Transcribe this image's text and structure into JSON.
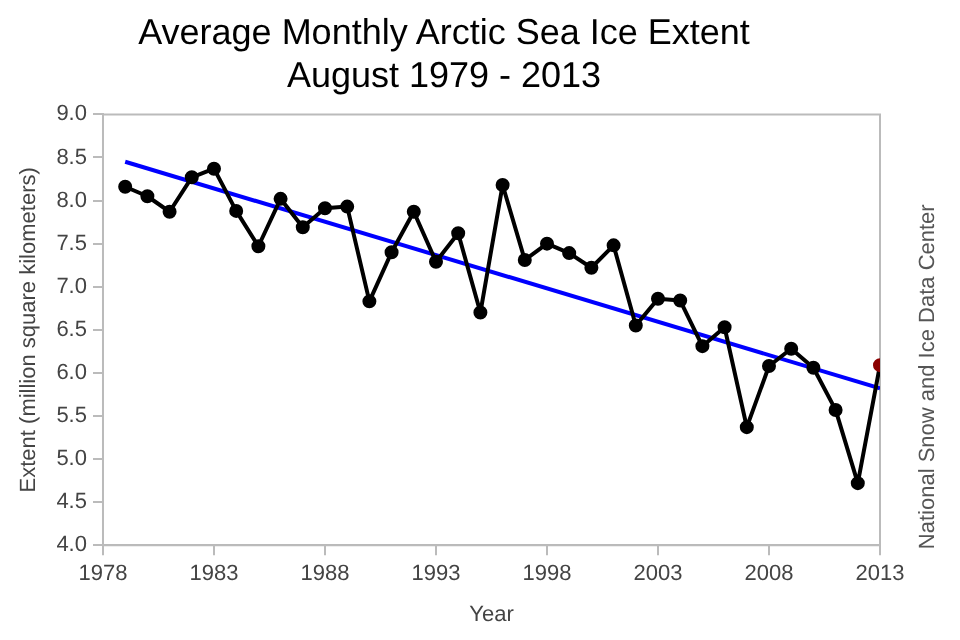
{
  "chart_data": {
    "type": "line",
    "title": "Average Monthly Arctic Sea Ice Extent\nAugust 1979 - 2013",
    "xlabel": "Year",
    "ylabel": "Extent (million square kilometers)",
    "annotations": [
      "National Snow and Ice Data Center"
    ],
    "x": [
      1979,
      1980,
      1981,
      1982,
      1983,
      1984,
      1985,
      1986,
      1987,
      1988,
      1989,
      1990,
      1991,
      1992,
      1993,
      1994,
      1995,
      1996,
      1997,
      1998,
      1999,
      2000,
      2001,
      2002,
      2003,
      2004,
      2005,
      2006,
      2007,
      2008,
      2009,
      2010,
      2011,
      2012,
      2013
    ],
    "series": [
      {
        "color": "#000000",
        "colors": [
          "#000000",
          "#000000",
          "#000000",
          "#000000",
          "#000000",
          "#000000",
          "#000000",
          "#000000",
          "#000000",
          "#000000",
          "#000000",
          "#000000",
          "#000000",
          "#000000",
          "#000000",
          "#000000",
          "#000000",
          "#000000",
          "#000000",
          "#000000",
          "#000000",
          "#000000",
          "#000000",
          "#000000",
          "#000000",
          "#000000",
          "#000000",
          "#000000",
          "#000000",
          "#000000",
          "#000000",
          "#000000",
          "#000000",
          "#000000",
          "#8b0000"
        ],
        "values": [
          8.16,
          8.05,
          7.87,
          8.27,
          8.37,
          7.88,
          7.47,
          8.02,
          7.69,
          7.91,
          7.93,
          6.83,
          7.4,
          7.87,
          7.29,
          7.62,
          6.7,
          8.18,
          7.31,
          7.5,
          7.39,
          7.22,
          7.48,
          6.55,
          6.86,
          6.84,
          6.31,
          6.53,
          5.37,
          6.08,
          6.28,
          6.06,
          5.57,
          4.72,
          6.09
        ]
      },
      {
        "type": "line",
        "color": "#0000ff",
        "x": [
          1979,
          2013
        ],
        "values": [
          8.45,
          5.82
        ],
        "marker": "none"
      }
    ],
    "xlim": [
      1978,
      2013
    ],
    "xticks": [
      1978,
      1983,
      1988,
      1993,
      1998,
      2003,
      2008,
      2013
    ],
    "ylim": [
      4.0,
      9.0
    ],
    "yticks": [
      {
        "value": 4,
        "label": "4.0"
      },
      {
        "value": 4.5,
        "label": "4.5"
      },
      {
        "value": 5,
        "label": "5.0"
      },
      {
        "value": 5.5,
        "label": "5.5"
      },
      {
        "value": 6,
        "label": "6.0"
      },
      {
        "value": 6.5,
        "label": "6.5"
      },
      {
        "value": 7,
        "label": "7.0"
      },
      {
        "value": 7.5,
        "label": "7.5"
      },
      {
        "value": 8,
        "label": "8.0"
      },
      {
        "value": 8.5,
        "label": "8.5"
      },
      {
        "value": 9,
        "label": "9.0"
      }
    ],
    "grid": false,
    "legend": false,
    "marker": "circle",
    "line_style": "solid"
  }
}
